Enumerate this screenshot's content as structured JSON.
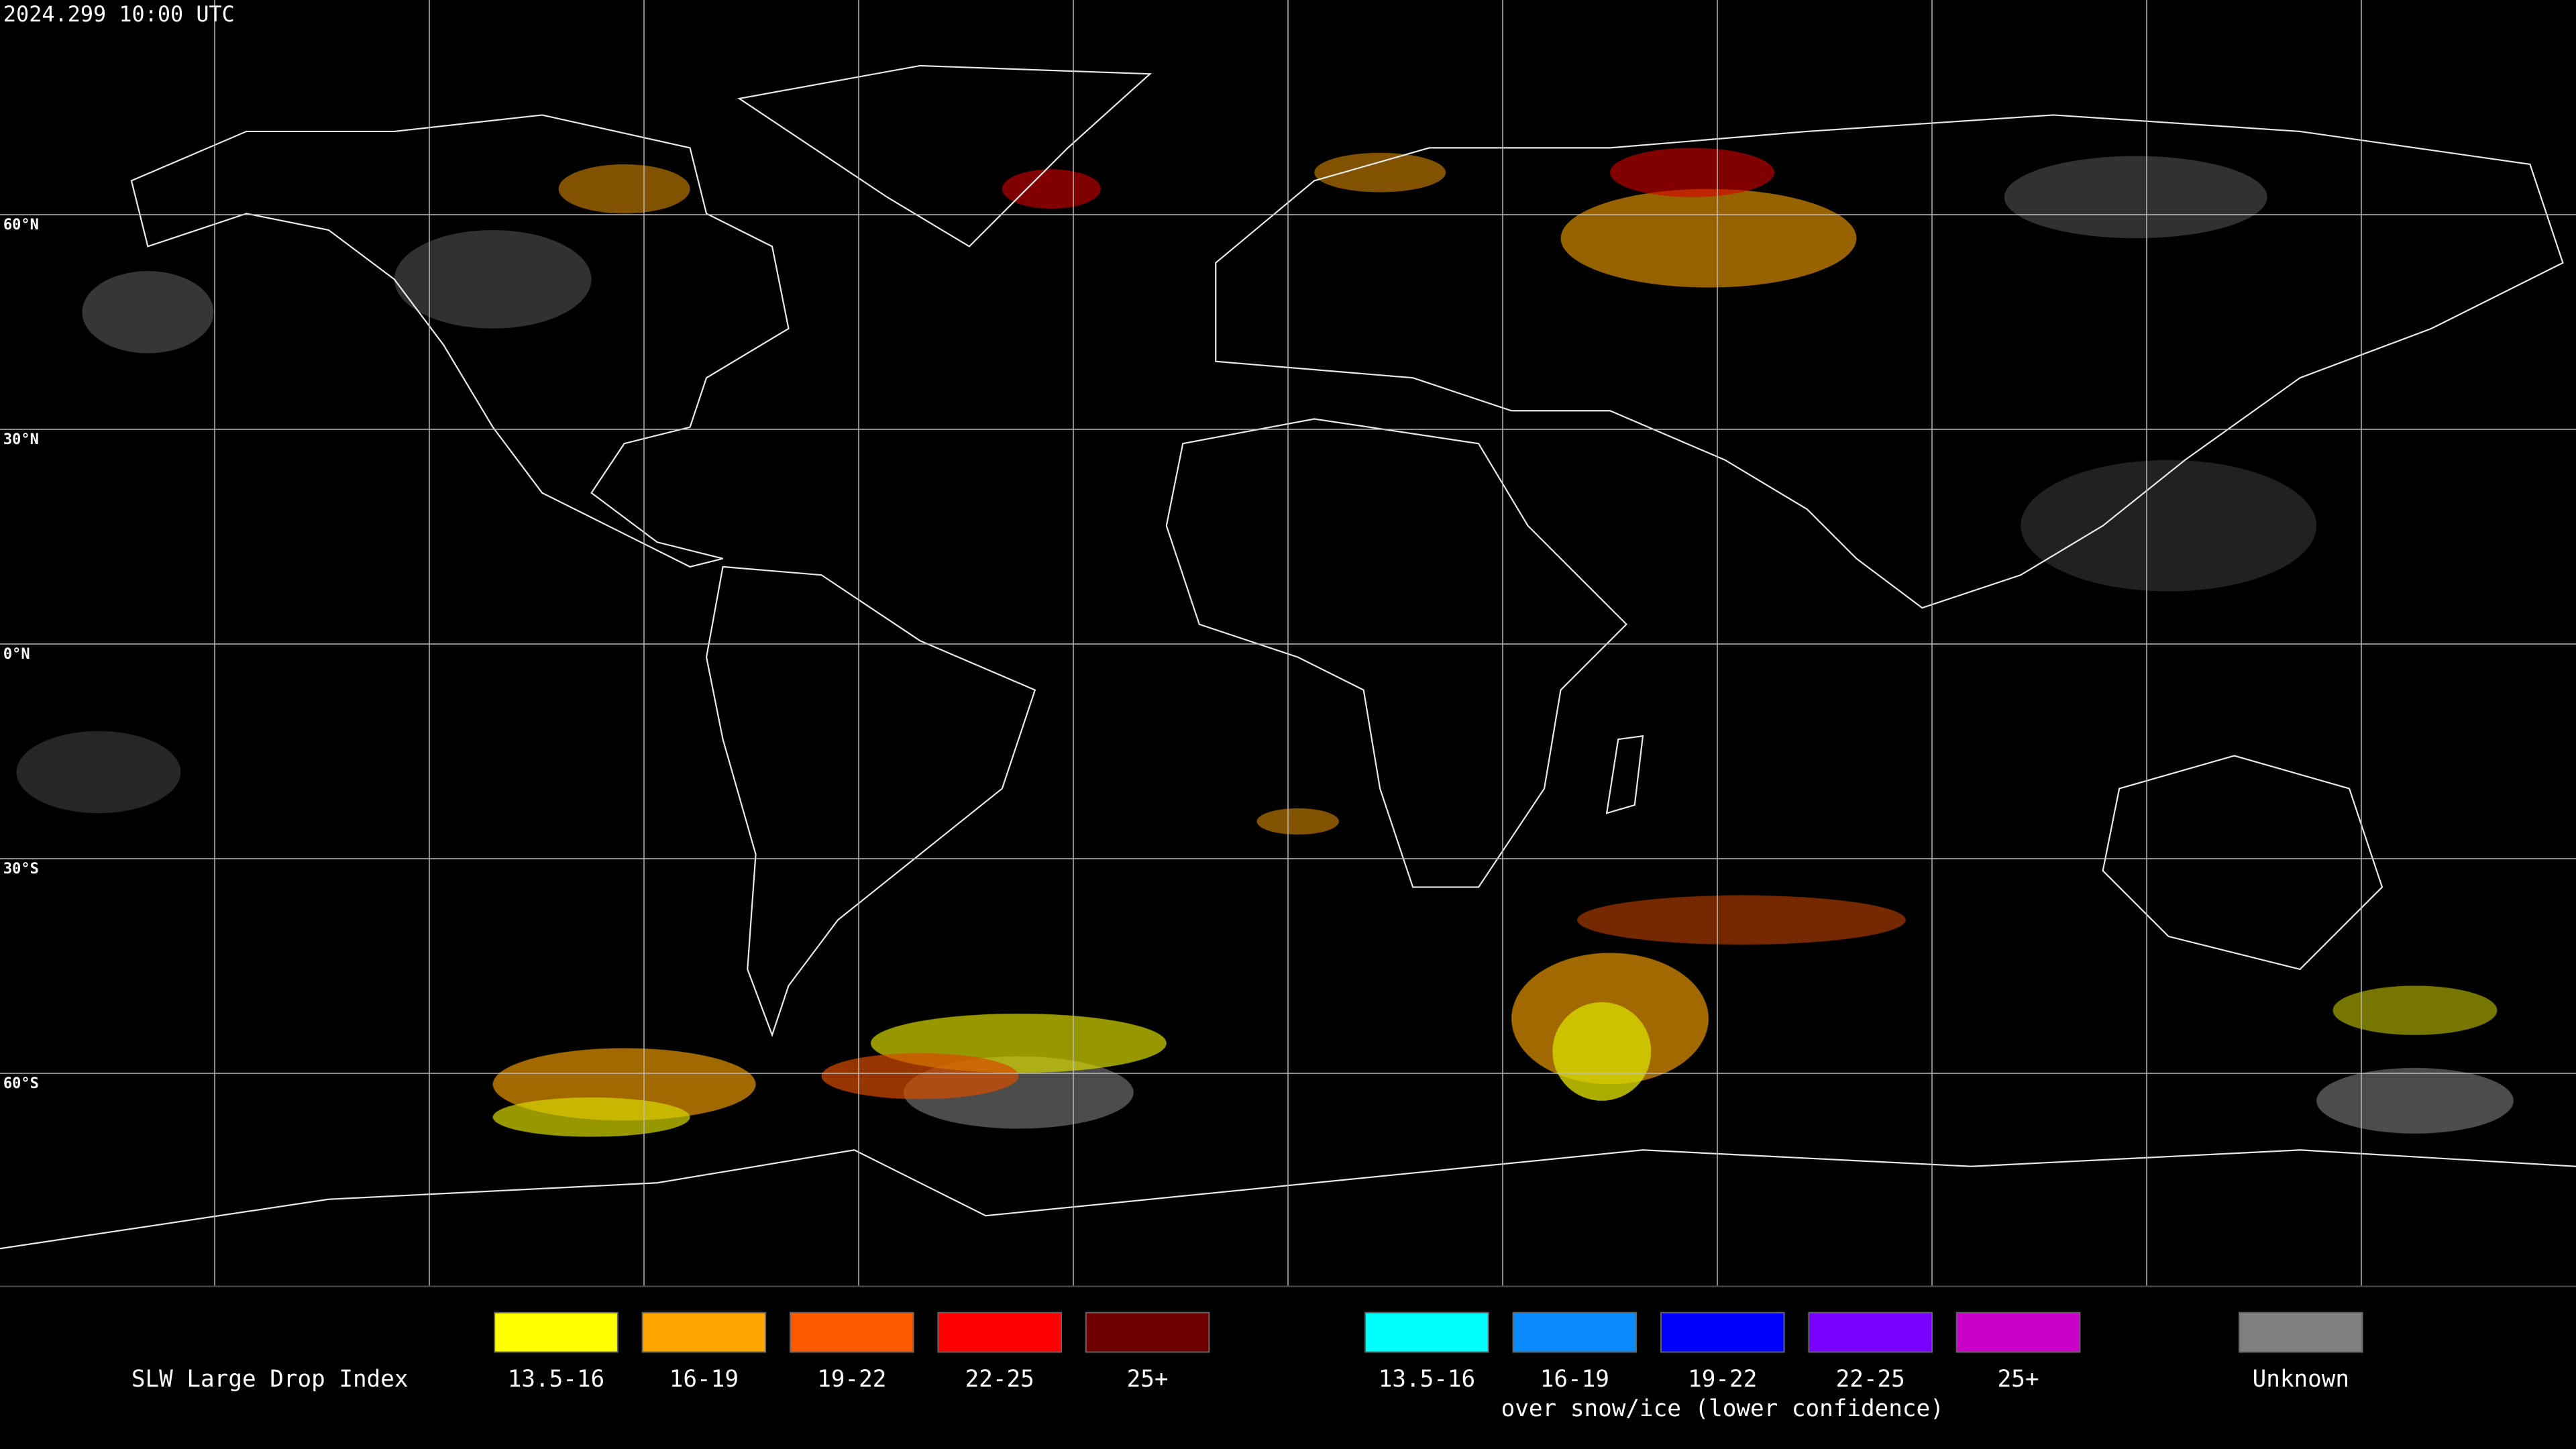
{
  "header": {
    "timestamp": "2024.299 10:00 UTC"
  },
  "map": {
    "latitude_labels": [
      "60°N",
      "30°N",
      "0°N",
      "30°S",
      "60°S"
    ]
  },
  "legend": {
    "title": "SLW Large Drop Index",
    "groups": [
      {
        "items": [
          {
            "label": "13.5-16",
            "color": "#ffff00"
          },
          {
            "label": "16-19",
            "color": "#ffa500"
          },
          {
            "label": "19-22",
            "color": "#ff5a00"
          },
          {
            "label": "22-25",
            "color": "#ff0000"
          },
          {
            "label": "25+",
            "color": "#6e0000"
          }
        ]
      },
      {
        "items": [
          {
            "label": "13.5-16",
            "color": "#00ffff"
          },
          {
            "label": "16-19",
            "color": "#0a8cff"
          },
          {
            "label": "19-22",
            "color": "#0000ff"
          },
          {
            "label": "22-25",
            "color": "#7800ff"
          },
          {
            "label": "25+",
            "color": "#c800c8"
          }
        ],
        "caption": "over snow/ice (lower confidence)"
      }
    ],
    "unknown": {
      "label": "Unknown",
      "color": "#808080"
    }
  }
}
